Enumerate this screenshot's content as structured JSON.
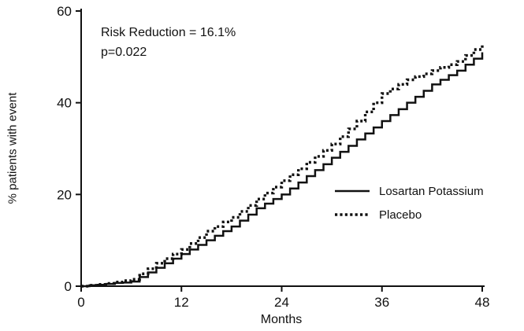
{
  "chart_data": {
    "type": "line",
    "title": "",
    "xlabel": "Months",
    "ylabel": "% patients with event",
    "xlim": [
      0,
      48
    ],
    "ylim": [
      0,
      60
    ],
    "x_ticks": [
      0,
      12,
      24,
      36,
      48
    ],
    "y_ticks": [
      0,
      20,
      40,
      60
    ],
    "grid": false,
    "line_color": "#111111",
    "annotations": [
      "Risk Reduction = 16.1%",
      "p=0.022"
    ],
    "legend": {
      "position": "inside-right",
      "entries": [
        {
          "label": "Losartan Potassium",
          "style": "solid"
        },
        {
          "label": "Placebo",
          "style": "dotted"
        }
      ]
    },
    "x": [
      0,
      1,
      2,
      3,
      4,
      5,
      6,
      7,
      8,
      9,
      10,
      11,
      12,
      13,
      14,
      15,
      16,
      17,
      18,
      19,
      20,
      21,
      22,
      23,
      24,
      25,
      26,
      27,
      28,
      29,
      30,
      31,
      32,
      33,
      34,
      35,
      36,
      37,
      38,
      39,
      40,
      41,
      42,
      43,
      44,
      45,
      46,
      47,
      48
    ],
    "series": [
      {
        "name": "Losartan Potassium",
        "style": "solid",
        "values": [
          0,
          0.2,
          0.3,
          0.5,
          0.7,
          0.8,
          1,
          2,
          3,
          4,
          5,
          6,
          7,
          8,
          9,
          10,
          11,
          12,
          13,
          14.3,
          15.6,
          17,
          18,
          19,
          20,
          21.3,
          22.6,
          24,
          25.3,
          26.6,
          28,
          29.3,
          30.6,
          32,
          33.3,
          34.6,
          36,
          37.3,
          38.6,
          40,
          41.3,
          42.6,
          44,
          45,
          46,
          47,
          48.3,
          49.6,
          51
        ]
      },
      {
        "name": "Placebo",
        "style": "dotted",
        "values": [
          0,
          0.2,
          0.4,
          0.6,
          0.9,
          1.2,
          1.5,
          2.7,
          3.8,
          5,
          6,
          7,
          8,
          9.3,
          10.6,
          12,
          13,
          14,
          15,
          16.3,
          17.6,
          19,
          20.3,
          21.6,
          23,
          24.3,
          25.6,
          27,
          28.3,
          29.6,
          31,
          32.6,
          34.3,
          36,
          38,
          40,
          42,
          43,
          44,
          45,
          45.7,
          46.3,
          47,
          47.7,
          48.3,
          49,
          50.3,
          51.6,
          53
        ]
      }
    ]
  }
}
